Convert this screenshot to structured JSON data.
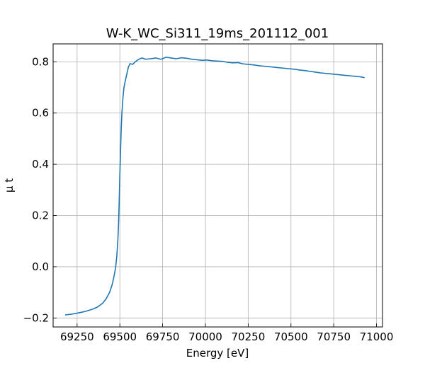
{
  "chart_data": {
    "type": "line",
    "title": "W-K_WC_Si311_19ms_201112_001",
    "xlabel": "Energy [eV]",
    "ylabel": "μ t",
    "xlim": [
      69110,
      71035
    ],
    "ylim": [
      -0.235,
      0.87
    ],
    "grid": true,
    "x_ticks": [
      69250,
      69500,
      69750,
      70000,
      70250,
      70500,
      70750,
      71000
    ],
    "x_tick_labels": [
      "69250",
      "69500",
      "69750",
      "70000",
      "70250",
      "70500",
      "70750",
      "71000"
    ],
    "y_ticks": [
      -0.2,
      0.0,
      0.2,
      0.4,
      0.6,
      0.8
    ],
    "y_tick_labels": [
      "−0.2",
      "0.0",
      "0.2",
      "0.4",
      "0.6",
      "0.8"
    ],
    "series": [
      {
        "color": "#1f77b4",
        "x": [
          69180,
          69220,
          69260,
          69300,
          69340,
          69370,
          69400,
          69420,
          69440,
          69455,
          69465,
          69475,
          69482,
          69488,
          69492,
          69496,
          69500,
          69504,
          69508,
          69512,
          69518,
          69524,
          69530,
          69540,
          69550,
          69560,
          69575,
          69590,
          69610,
          69630,
          69650,
          69680,
          69710,
          69740,
          69770,
          69800,
          69830,
          69860,
          69890,
          69920,
          69950,
          69980,
          70010,
          70040,
          70070,
          70100,
          70130,
          70160,
          70190,
          70220,
          70250,
          70280,
          70310,
          70340,
          70370,
          70400,
          70430,
          70460,
          70490,
          70520,
          70550,
          70580,
          70610,
          70640,
          70670,
          70700,
          70730,
          70760,
          70790,
          70820,
          70850,
          70880,
          70910,
          70930
        ],
        "y": [
          -0.188,
          -0.185,
          -0.18,
          -0.174,
          -0.166,
          -0.157,
          -0.142,
          -0.125,
          -0.1,
          -0.07,
          -0.04,
          -0.005,
          0.04,
          0.1,
          0.16,
          0.25,
          0.36,
          0.45,
          0.54,
          0.6,
          0.66,
          0.7,
          0.72,
          0.75,
          0.78,
          0.793,
          0.79,
          0.8,
          0.81,
          0.815,
          0.81,
          0.812,
          0.815,
          0.81,
          0.818,
          0.815,
          0.812,
          0.816,
          0.814,
          0.81,
          0.808,
          0.806,
          0.807,
          0.804,
          0.803,
          0.802,
          0.798,
          0.796,
          0.797,
          0.792,
          0.79,
          0.788,
          0.785,
          0.783,
          0.781,
          0.779,
          0.777,
          0.775,
          0.773,
          0.771,
          0.768,
          0.766,
          0.763,
          0.76,
          0.757,
          0.755,
          0.753,
          0.751,
          0.749,
          0.747,
          0.745,
          0.743,
          0.741,
          0.738
        ]
      }
    ]
  }
}
